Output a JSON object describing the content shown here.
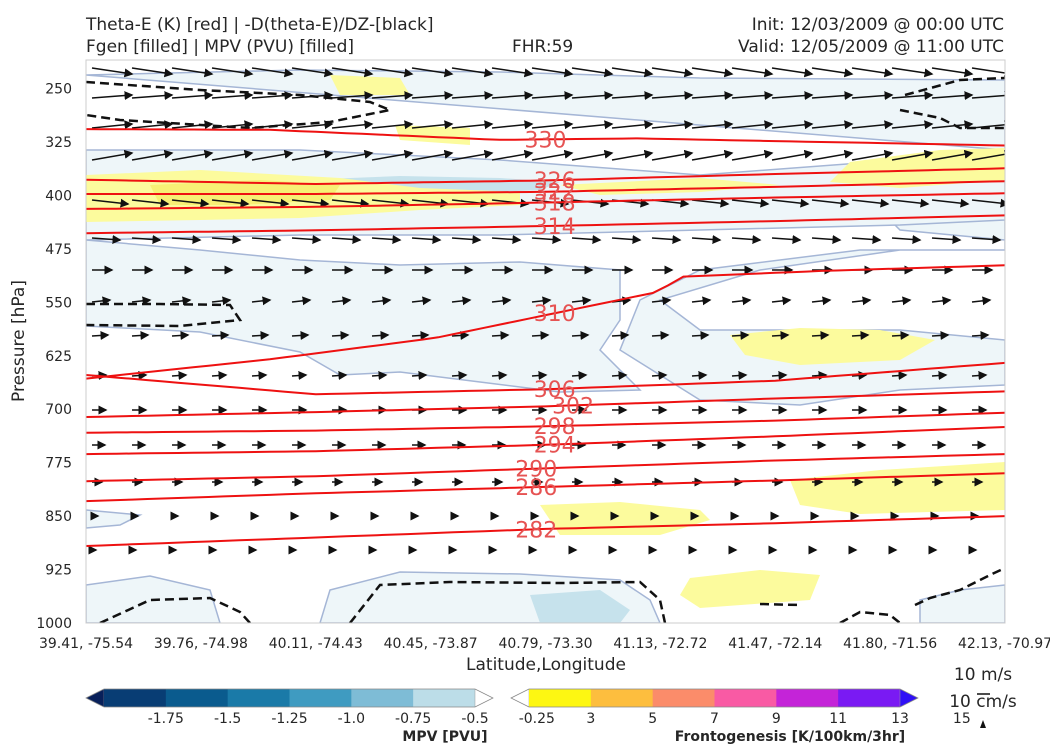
{
  "header": {
    "title_line1": "Theta-E (K) [red] | -D(theta-E)/DZ-[black]",
    "title_line2": "Fgen [filled] | MPV (PVU) [filled]",
    "fhr": "FHR:59",
    "init": "Init: 12/03/2009 @ 00:00 UTC",
    "valid": "Valid: 12/05/2009 @ 11:00 UTC"
  },
  "chart_data": {
    "type": "cross-section",
    "xlabel": "Latitude,Longitude",
    "ylabel": "Pressure [hPa]",
    "x_ticks": [
      "39.41, -75.54",
      "39.76, -74.98",
      "40.11, -74.43",
      "40.45, -73.87",
      "40.79, -73.30",
      "41.13, -72.72",
      "41.47, -72.14",
      "41.80, -71.56",
      "42.13, -70.97"
    ],
    "y_ticks": [
      250,
      325,
      400,
      475,
      550,
      625,
      700,
      775,
      850,
      925,
      1000
    ],
    "ylim": [
      1000,
      210
    ],
    "theta_e_contours": [
      {
        "value": 330,
        "label": "330",
        "points": [
          [
            0,
            307
          ],
          [
            0.2,
            308
          ],
          [
            0.45,
            322
          ],
          [
            0.6,
            320
          ],
          [
            0.8,
            325
          ],
          [
            1,
            330
          ]
        ]
      },
      {
        "value": 326,
        "label": "326",
        "points": [
          [
            0,
            378
          ],
          [
            0.25,
            384
          ],
          [
            0.5,
            379
          ],
          [
            0.75,
            370
          ],
          [
            1,
            362
          ]
        ]
      },
      {
        "value": 322,
        "label": "322",
        "points": [
          [
            0,
            398
          ],
          [
            0.25,
            398
          ],
          [
            0.5,
            395
          ],
          [
            0.75,
            388
          ],
          [
            1,
            380
          ]
        ]
      },
      {
        "value": 318,
        "label": "318",
        "points": [
          [
            0,
            419
          ],
          [
            0.25,
            416
          ],
          [
            0.5,
            410
          ],
          [
            0.75,
            403
          ],
          [
            1,
            397
          ]
        ]
      },
      {
        "value": 314,
        "label": "314",
        "points": [
          [
            0,
            453
          ],
          [
            0.25,
            449
          ],
          [
            0.5,
            443
          ],
          [
            0.75,
            436
          ],
          [
            1,
            428
          ]
        ]
      },
      {
        "value": 310,
        "label": "310",
        "points": [
          [
            0,
            657
          ],
          [
            0.2,
            630
          ],
          [
            0.38,
            600
          ],
          [
            0.5,
            568
          ],
          [
            0.62,
            536
          ],
          [
            0.65,
            514
          ],
          [
            0.8,
            506
          ],
          [
            1,
            498
          ]
        ]
      },
      {
        "value": 306,
        "label": "306",
        "points": [
          [
            0,
            652
          ],
          [
            0.25,
            679
          ],
          [
            0.5,
            672
          ],
          [
            0.75,
            660
          ],
          [
            1,
            635
          ]
        ]
      },
      {
        "value": 302,
        "label": "302",
        "points": [
          [
            0,
            711
          ],
          [
            0.25,
            704
          ],
          [
            0.5,
            696
          ],
          [
            0.75,
            685
          ],
          [
            1,
            675
          ]
        ]
      },
      {
        "value": 298,
        "label": "298",
        "points": [
          [
            0,
            733
          ],
          [
            0.25,
            730
          ],
          [
            0.5,
            724
          ],
          [
            0.75,
            716
          ],
          [
            1,
            705
          ]
        ]
      },
      {
        "value": 294,
        "label": "294",
        "points": [
          [
            0,
            763
          ],
          [
            0.25,
            759
          ],
          [
            0.5,
            750
          ],
          [
            0.75,
            738
          ],
          [
            1,
            725
          ]
        ]
      },
      {
        "value": 290,
        "label": "290",
        "points": [
          [
            0,
            801
          ],
          [
            0.25,
            794
          ],
          [
            0.5,
            783
          ],
          [
            0.75,
            772
          ],
          [
            1,
            763
          ]
        ]
      },
      {
        "value": 286,
        "label": "286",
        "points": [
          [
            0,
            829
          ],
          [
            0.25,
            818
          ],
          [
            0.5,
            809
          ],
          [
            0.75,
            800
          ],
          [
            1,
            790
          ]
        ]
      },
      {
        "value": 282,
        "label": "282",
        "points": [
          [
            0,
            892
          ],
          [
            0.25,
            880
          ],
          [
            0.5,
            868
          ],
          [
            0.75,
            860
          ],
          [
            1,
            850
          ]
        ]
      }
    ],
    "theta_e_color": "#ee1111",
    "mpv_colorbar": {
      "title": "MPV [PVU]",
      "ticks": [
        "-1.75",
        "-1.5",
        "-1.25",
        "-1.0",
        "-0.75",
        "-0.5",
        "-0.25"
      ],
      "colors": [
        "#08205a",
        "#083d74",
        "#0a5b8e",
        "#1a7aa8",
        "#3f9bc1",
        "#7ebcd6",
        "#bcdde8",
        "#ffffff"
      ]
    },
    "fgen_colorbar": {
      "title": "Frontogenesis [K/100km/3hr]",
      "ticks": [
        "3",
        "5",
        "7",
        "9",
        "11",
        "13",
        "15"
      ],
      "colors": [
        "#ffffff",
        "#fdf712",
        "#fdbe3e",
        "#fb8c6a",
        "#f95aa4",
        "#c424d8",
        "#7a1af3",
        "#2f10f6"
      ]
    },
    "vector_scale": {
      "label1": "10 m/s",
      "label2": "10 cm/s"
    }
  }
}
